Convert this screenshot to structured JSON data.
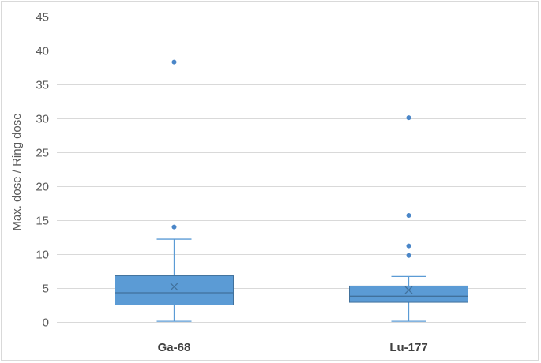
{
  "chart_data": {
    "type": "box",
    "title": "",
    "xlabel": "",
    "ylabel": "Max. dose / Ring dose",
    "ylim": [
      0,
      45
    ],
    "yticks": [
      0,
      5,
      10,
      15,
      20,
      25,
      30,
      35,
      40,
      45
    ],
    "grid": true,
    "legend": "none",
    "colors": {
      "box_fill": "#5b9bd5",
      "box_stroke": "#41719c",
      "whisker": "#5b9bd5",
      "outlier": "#4a86c8",
      "grid": "#d9d9d9"
    },
    "categories": [
      "Ga-68",
      "Lu-177"
    ],
    "boxes": [
      {
        "category": "Ga-68",
        "min": 0.1,
        "q1": 2.5,
        "median": 4.3,
        "mean": 5.2,
        "q3": 6.8,
        "max": 12.2,
        "outliers": [
          14.0,
          38.3
        ]
      },
      {
        "category": "Lu-177",
        "min": 0.1,
        "q1": 2.9,
        "median": 3.8,
        "mean": 4.7,
        "q3": 5.3,
        "max": 6.7,
        "outliers": [
          9.8,
          11.2,
          15.7,
          30.1
        ]
      }
    ]
  }
}
